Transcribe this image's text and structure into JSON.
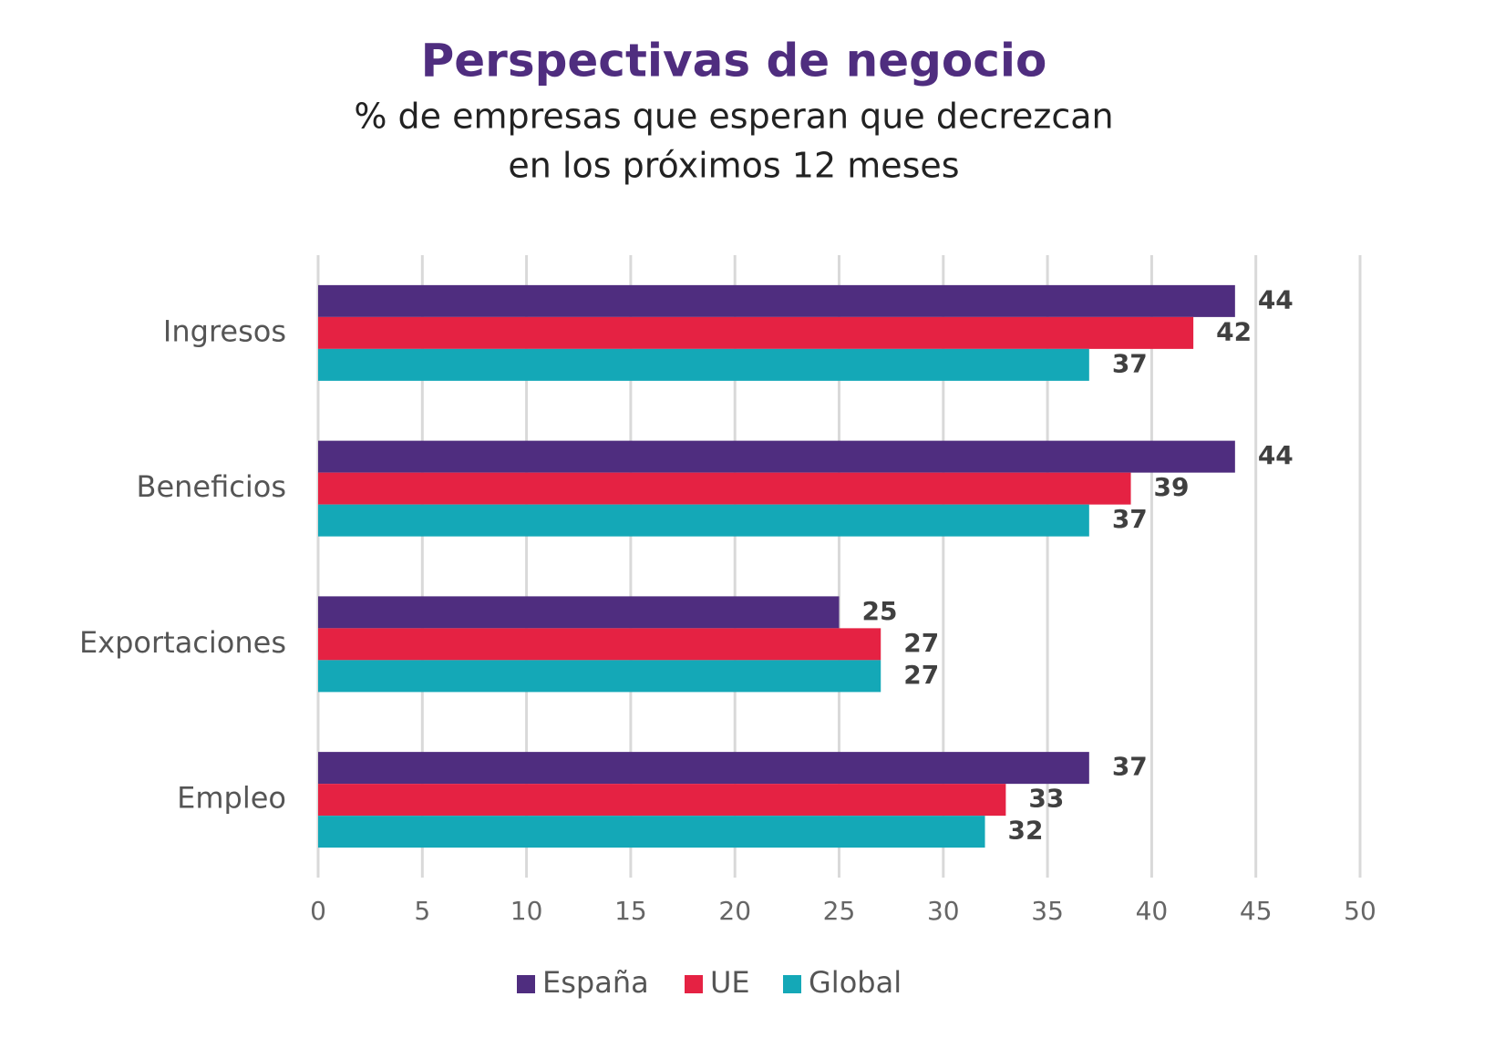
{
  "chart_data": {
    "type": "bar",
    "orientation": "horizontal",
    "title": "Perspectivas de negocio",
    "subtitle": [
      "% de empresas que esperan que decrezcan",
      "en los próximos 12 meses"
    ],
    "categories": [
      "Ingresos",
      "Beneficios",
      "Exportaciones",
      "Empleo"
    ],
    "series": [
      {
        "name": "España",
        "color": "#4f2d7f",
        "values": [
          44,
          44,
          25,
          37
        ]
      },
      {
        "name": "UE",
        "color": "#e52243",
        "values": [
          42,
          39,
          27,
          33
        ]
      },
      {
        "name": "Global",
        "color": "#14a8b7",
        "values": [
          37,
          37,
          27,
          32
        ]
      }
    ],
    "xlim": [
      0,
      50
    ],
    "xticks": [
      0,
      5,
      10,
      15,
      20,
      25,
      30,
      35,
      40,
      45,
      50
    ],
    "grid": true,
    "legend": "bottom"
  }
}
